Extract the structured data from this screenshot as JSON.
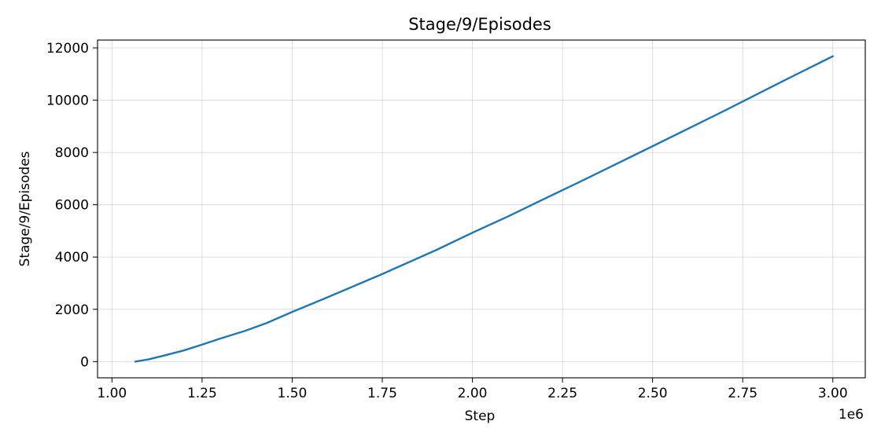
{
  "chart_data": {
    "type": "line",
    "title": "Stage/9/Episodes",
    "xlabel": "Step",
    "ylabel": "Stage/9/Episodes",
    "x_offset_label": "1e6",
    "xlim": [
      0.96,
      3.09
    ],
    "ylim": [
      -620,
      12300
    ],
    "x_ticks": [
      1.0,
      1.25,
      1.5,
      1.75,
      2.0,
      2.25,
      2.5,
      2.75,
      3.0
    ],
    "x_tick_labels": [
      "1.00",
      "1.25",
      "1.50",
      "1.75",
      "2.00",
      "2.25",
      "2.50",
      "2.75",
      "3.00"
    ],
    "y_ticks": [
      0,
      2000,
      4000,
      6000,
      8000,
      10000,
      12000
    ],
    "y_tick_labels": [
      "0",
      "2000",
      "4000",
      "6000",
      "8000",
      "10000",
      "12000"
    ],
    "grid": true,
    "series": [
      {
        "color": "#1f77b4",
        "x": [
          1.065,
          1.1,
          1.15,
          1.2,
          1.25,
          1.3,
          1.37,
          1.43,
          1.5,
          1.6,
          1.75,
          1.9,
          2.0,
          2.1,
          2.2,
          2.3,
          2.5,
          2.7,
          2.85,
          3.0
        ],
        "y": [
          0,
          80,
          250,
          430,
          650,
          880,
          1180,
          1480,
          1900,
          2470,
          3350,
          4270,
          4930,
          5560,
          6230,
          6890,
          8240,
          9600,
          10650,
          11680
        ]
      }
    ]
  }
}
